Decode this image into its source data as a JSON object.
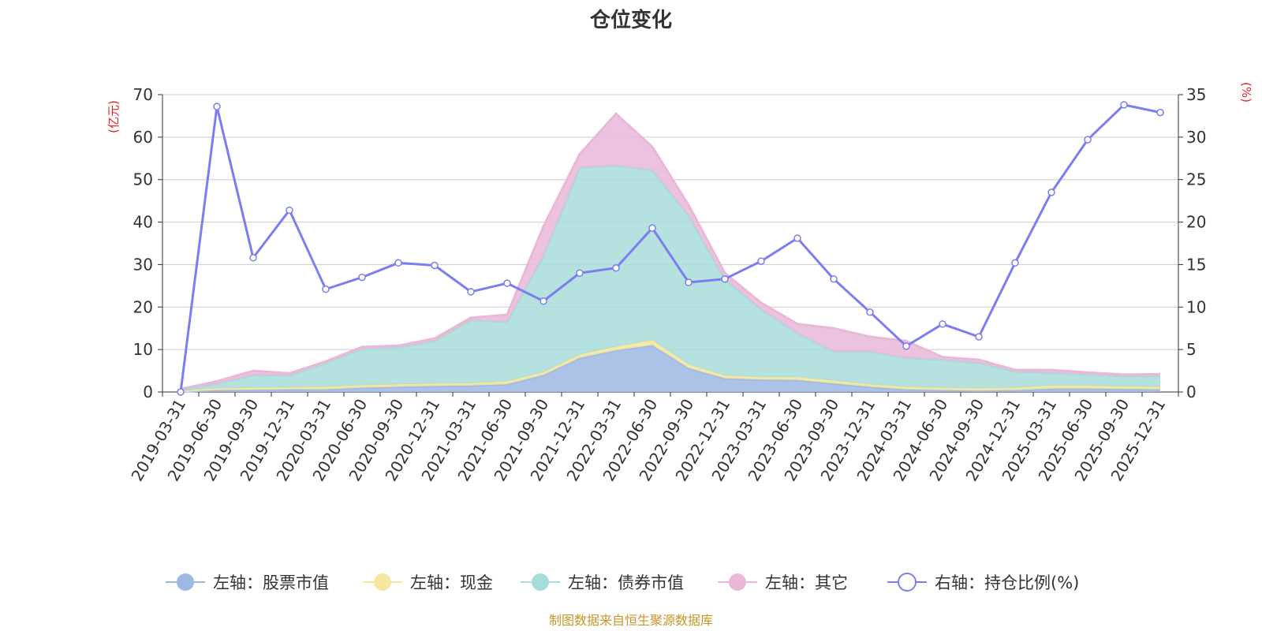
{
  "chart_data": {
    "type": "area",
    "title": "仓位变化",
    "left_axis_unit": "(亿元)",
    "right_axis_unit": "(%)",
    "left_ylim": [
      0,
      70
    ],
    "right_ylim": [
      0,
      35
    ],
    "left_ticks": [
      "0",
      "10",
      "20",
      "30",
      "40",
      "50",
      "60",
      "70"
    ],
    "right_ticks": [
      "0",
      "5",
      "10",
      "15",
      "20",
      "25",
      "30",
      "35"
    ],
    "categories": [
      "2019-03-31",
      "2019-06-30",
      "2019-09-30",
      "2019-12-31",
      "2020-03-31",
      "2020-06-30",
      "2020-09-30",
      "2020-12-31",
      "2021-03-31",
      "2021-06-30",
      "2021-09-30",
      "2021-12-31",
      "2022-03-31",
      "2022-06-30",
      "2022-09-30",
      "2022-12-31",
      "2023-03-31",
      "2023-06-30",
      "2023-09-30",
      "2023-12-31",
      "2024-03-31",
      "2024-06-30",
      "2024-09-30",
      "2024-12-31",
      "2025-03-31",
      "2025-06-30",
      "2025-09-30",
      "2025-12-31"
    ],
    "stacked_series": [
      {
        "name": "左轴：股票市值",
        "color": "#9db8e3",
        "values": [
          0.1,
          0.4,
          0.5,
          0.6,
          0.6,
          1.0,
          1.2,
          1.4,
          1.5,
          1.8,
          4.0,
          8.0,
          9.8,
          11.0,
          5.6,
          3.2,
          2.9,
          2.8,
          2.0,
          1.2,
          0.6,
          0.4,
          0.3,
          0.4,
          0.8,
          0.8,
          0.7,
          0.6
        ]
      },
      {
        "name": "左轴：现金",
        "color": "#f5e6a0",
        "values": [
          0.1,
          0.5,
          0.5,
          0.5,
          0.6,
          0.6,
          0.6,
          0.6,
          0.6,
          0.7,
          0.7,
          0.8,
          0.9,
          1.2,
          0.9,
          0.7,
          0.6,
          0.7,
          0.7,
          0.6,
          0.6,
          0.6,
          0.6,
          0.6,
          0.7,
          0.7,
          0.6,
          0.6
        ]
      },
      {
        "name": "左轴：债券市值",
        "color": "#a8dcd9",
        "values": [
          0.3,
          1.0,
          3.0,
          2.8,
          5.6,
          8.6,
          8.7,
          10.0,
          14.8,
          14.0,
          27.3,
          44.0,
          42.6,
          40.0,
          35.0,
          22.6,
          16.0,
          10.3,
          6.8,
          7.7,
          6.8,
          6.6,
          5.9,
          3.8,
          3.0,
          2.6,
          2.4,
          2.6
        ]
      },
      {
        "name": "左轴：其它",
        "color": "#e9b8d8",
        "values": [
          0.2,
          0.6,
          1.0,
          0.5,
          0.4,
          0.4,
          0.4,
          0.6,
          0.6,
          1.7,
          7.0,
          3.2,
          12.2,
          5.5,
          2.5,
          1.5,
          1.5,
          2.2,
          5.5,
          3.5,
          4.0,
          0.6,
          0.8,
          0.4,
          0.7,
          0.5,
          0.4,
          0.4
        ]
      }
    ],
    "line_series": {
      "name": "右轴：持仓比例(%)",
      "color": "#7b7ef0",
      "values": [
        0.0,
        33.6,
        15.8,
        21.4,
        12.1,
        13.5,
        15.2,
        14.9,
        11.8,
        12.8,
        10.7,
        14.0,
        14.6,
        19.3,
        12.9,
        13.3,
        15.4,
        18.1,
        13.3,
        9.4,
        5.4,
        8.0,
        6.5,
        15.2,
        23.5,
        29.7,
        33.8,
        32.9
      ]
    },
    "legend_position": "bottom-center",
    "grid": true,
    "source_note": "制图数据来自恒生聚源数据库"
  }
}
